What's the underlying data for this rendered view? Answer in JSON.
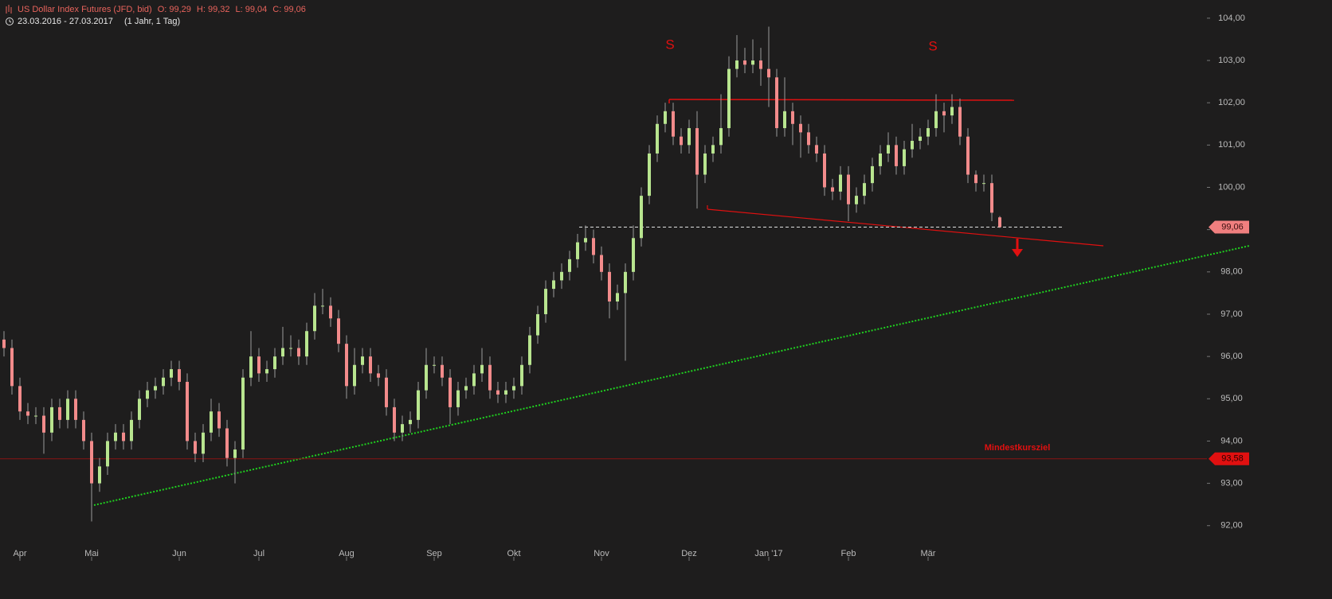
{
  "chart_data": {
    "type": "candlestick",
    "title": "US Dollar Index Futures (JFD, bid)",
    "ohlc_labels": [
      "O: 99,29",
      "H: 99,32",
      "L: 99,04",
      "C: 99,06"
    ],
    "period": "23.03.2016 - 27.03.2017",
    "period_note": "(1 Jahr, 1 Tag)",
    "pattern_labels": [
      "S",
      "S"
    ],
    "target_label": "Mindestkursziel",
    "last_price": {
      "value": 99.06,
      "label": "99,06"
    },
    "target_price": {
      "value": 93.58,
      "label": "93,58"
    },
    "up_color": "#b8e58f",
    "down_color": "#f28b8b",
    "ylim": [
      91.45,
      104.43
    ],
    "yticks": [
      {
        "value": 92,
        "label": "92,00"
      },
      {
        "value": 93,
        "label": "93,00"
      },
      {
        "value": 94,
        "label": "94,00"
      },
      {
        "value": 95,
        "label": "95,00"
      },
      {
        "value": 96,
        "label": "96,00"
      },
      {
        "value": 97,
        "label": "97,00"
      },
      {
        "value": 98,
        "label": "98,00"
      },
      {
        "value": 99,
        "label": "99,00"
      },
      {
        "value": 100,
        "label": "100,00"
      },
      {
        "value": 101,
        "label": "101,00"
      },
      {
        "value": 102,
        "label": "102,00"
      },
      {
        "value": 103,
        "label": "103,00"
      },
      {
        "value": 104,
        "label": "104,00"
      }
    ],
    "categories": [
      null,
      null,
      "Apr",
      null,
      null,
      null,
      null,
      null,
      null,
      null,
      null,
      "Mai",
      null,
      null,
      null,
      null,
      null,
      null,
      null,
      null,
      null,
      null,
      "Jun",
      null,
      null,
      null,
      null,
      null,
      null,
      null,
      null,
      null,
      "Jul",
      null,
      null,
      null,
      null,
      null,
      null,
      null,
      null,
      null,
      null,
      "Aug",
      null,
      null,
      null,
      null,
      null,
      null,
      null,
      null,
      null,
      null,
      "Sep",
      null,
      null,
      null,
      null,
      null,
      null,
      null,
      null,
      null,
      "Okt",
      null,
      null,
      null,
      null,
      null,
      null,
      null,
      null,
      null,
      null,
      "Nov",
      null,
      null,
      null,
      null,
      null,
      null,
      null,
      null,
      null,
      null,
      "Dez",
      null,
      null,
      null,
      null,
      null,
      null,
      null,
      null,
      null,
      "Jan '17",
      null,
      null,
      null,
      null,
      null,
      null,
      null,
      null,
      null,
      "Feb",
      null,
      null,
      null,
      null,
      null,
      null,
      null,
      null,
      null,
      "Mär",
      null,
      null,
      null,
      null,
      null,
      null,
      null,
      null,
      null
    ],
    "open": [
      96.4,
      96.2,
      95.3,
      94.7,
      94.6,
      94.6,
      94.2,
      94.8,
      94.5,
      95.0,
      94.5,
      94.0,
      93.0,
      93.4,
      94.0,
      94.2,
      94.0,
      94.5,
      95.0,
      95.2,
      95.3,
      95.5,
      95.7,
      95.4,
      94.0,
      93.7,
      94.2,
      94.7,
      94.3,
      93.6,
      93.8,
      95.5,
      96.0,
      95.6,
      95.7,
      96.0,
      96.2,
      96.2,
      96.0,
      96.6,
      97.2,
      97.2,
      96.9,
      96.3,
      95.3,
      95.8,
      96.0,
      95.6,
      95.5,
      94.8,
      94.2,
      94.4,
      94.5,
      95.2,
      95.8,
      95.8,
      95.5,
      94.8,
      95.2,
      95.3,
      95.6,
      95.8,
      95.2,
      95.1,
      95.2,
      95.3,
      95.8,
      96.5,
      97.0,
      97.6,
      97.8,
      98.0,
      98.3,
      98.7,
      98.8,
      98.4,
      98.0,
      97.3,
      97.5,
      98.0,
      98.8,
      99.8,
      100.8,
      101.5,
      101.8,
      101.2,
      101.0,
      101.4,
      100.3,
      100.8,
      101.0,
      101.4,
      102.8,
      103.0,
      102.9,
      103.0,
      102.8,
      102.6,
      101.4,
      101.8,
      101.5,
      101.3,
      101.0,
      100.8,
      100.0,
      99.9,
      100.3,
      99.6,
      99.8,
      100.1,
      100.5,
      100.8,
      101.0,
      100.5,
      100.9,
      101.1,
      101.2,
      101.4,
      101.8,
      101.7,
      101.9,
      101.2,
      100.3,
      100.1,
      100.1,
      99.29
    ],
    "high": [
      96.6,
      96.4,
      95.5,
      94.9,
      94.8,
      94.8,
      95.0,
      95.0,
      95.2,
      95.2,
      94.7,
      94.2,
      93.6,
      94.2,
      94.4,
      94.4,
      94.7,
      95.2,
      95.4,
      95.5,
      95.7,
      95.9,
      95.9,
      95.6,
      94.2,
      94.4,
      95.0,
      94.9,
      94.5,
      94.0,
      95.7,
      96.6,
      96.2,
      95.9,
      96.2,
      96.7,
      96.5,
      96.4,
      96.8,
      97.5,
      97.6,
      97.4,
      97.1,
      96.5,
      96.2,
      96.2,
      96.2,
      95.8,
      95.7,
      95.0,
      94.6,
      94.7,
      95.4,
      96.2,
      96.0,
      96.0,
      95.7,
      95.4,
      95.5,
      95.8,
      96.2,
      96.0,
      95.4,
      95.4,
      95.5,
      96.0,
      96.7,
      97.2,
      97.8,
      98.0,
      98.2,
      98.5,
      98.9,
      99.1,
      99.0,
      98.6,
      98.2,
      97.7,
      98.2,
      99.1,
      100.0,
      101.0,
      101.7,
      102.0,
      102.0,
      101.4,
      101.6,
      101.8,
      101.0,
      101.2,
      102.2,
      103.1,
      103.6,
      103.3,
      103.5,
      103.3,
      103.8,
      102.8,
      102.6,
      102.0,
      101.7,
      101.5,
      101.2,
      101.0,
      100.2,
      100.5,
      100.5,
      100.0,
      100.3,
      100.7,
      101.0,
      101.3,
      101.2,
      101.1,
      101.5,
      101.4,
      101.6,
      102.2,
      102.0,
      102.2,
      102.1,
      101.4,
      100.4,
      100.3,
      100.3,
      99.32
    ],
    "low": [
      96.0,
      95.1,
      94.5,
      94.4,
      94.4,
      93.7,
      94.0,
      94.3,
      94.3,
      94.3,
      93.8,
      92.1,
      92.8,
      93.2,
      93.8,
      93.8,
      93.8,
      94.3,
      94.8,
      95.0,
      95.1,
      95.3,
      95.2,
      93.8,
      93.5,
      93.5,
      94.0,
      94.1,
      93.4,
      93.0,
      93.6,
      95.3,
      95.4,
      95.4,
      95.5,
      95.8,
      96.0,
      95.8,
      95.8,
      96.4,
      97.0,
      96.7,
      96.1,
      95.0,
      95.1,
      95.6,
      95.4,
      95.3,
      94.6,
      94.0,
      94.0,
      94.2,
      94.3,
      95.0,
      95.6,
      95.3,
      94.4,
      94.6,
      95.0,
      95.1,
      95.4,
      95.0,
      94.9,
      94.9,
      95.0,
      95.1,
      95.6,
      96.3,
      96.8,
      97.4,
      97.6,
      97.8,
      98.1,
      98.5,
      98.2,
      97.8,
      96.9,
      97.1,
      95.9,
      97.8,
      98.6,
      99.6,
      100.6,
      101.3,
      101.0,
      100.8,
      100.8,
      99.5,
      100.1,
      100.6,
      100.8,
      101.2,
      102.6,
      102.7,
      102.7,
      102.4,
      101.9,
      101.2,
      101.2,
      101.0,
      100.7,
      100.8,
      100.6,
      99.8,
      99.7,
      99.7,
      99.2,
      99.4,
      99.6,
      99.9,
      100.3,
      100.6,
      100.3,
      100.3,
      100.7,
      100.9,
      101.0,
      101.2,
      101.3,
      101.5,
      101.0,
      100.1,
      99.9,
      99.9,
      99.2,
      99.04
    ],
    "close": [
      96.2,
      95.3,
      94.7,
      94.6,
      94.6,
      94.2,
      94.8,
      94.5,
      95.0,
      94.5,
      94.0,
      93.0,
      93.4,
      94.0,
      94.2,
      94.0,
      94.5,
      95.0,
      95.2,
      95.3,
      95.5,
      95.7,
      95.4,
      94.0,
      93.7,
      94.2,
      94.7,
      94.3,
      93.6,
      93.8,
      95.5,
      96.0,
      95.6,
      95.7,
      96.0,
      96.2,
      96.2,
      96.0,
      96.6,
      97.2,
      97.2,
      96.9,
      96.3,
      95.3,
      95.8,
      96.0,
      95.6,
      95.5,
      94.8,
      94.2,
      94.4,
      94.5,
      95.2,
      95.8,
      95.8,
      95.5,
      94.8,
      95.2,
      95.3,
      95.6,
      95.8,
      95.2,
      95.1,
      95.2,
      95.3,
      95.8,
      96.5,
      97.0,
      97.6,
      97.8,
      98.0,
      98.3,
      98.7,
      98.8,
      98.4,
      98.0,
      97.3,
      97.5,
      98.0,
      98.8,
      99.8,
      100.8,
      101.5,
      101.8,
      101.2,
      101.0,
      101.4,
      100.3,
      100.8,
      101.0,
      101.4,
      102.8,
      103.0,
      102.9,
      103.0,
      102.8,
      102.6,
      101.4,
      101.8,
      101.5,
      101.3,
      101.0,
      100.8,
      100.0,
      99.9,
      100.3,
      99.6,
      99.8,
      100.1,
      100.5,
      100.8,
      101.0,
      100.5,
      100.9,
      101.1,
      101.2,
      101.4,
      101.8,
      101.7,
      101.9,
      101.2,
      100.3,
      100.1,
      100.1,
      99.4,
      99.06
    ]
  }
}
